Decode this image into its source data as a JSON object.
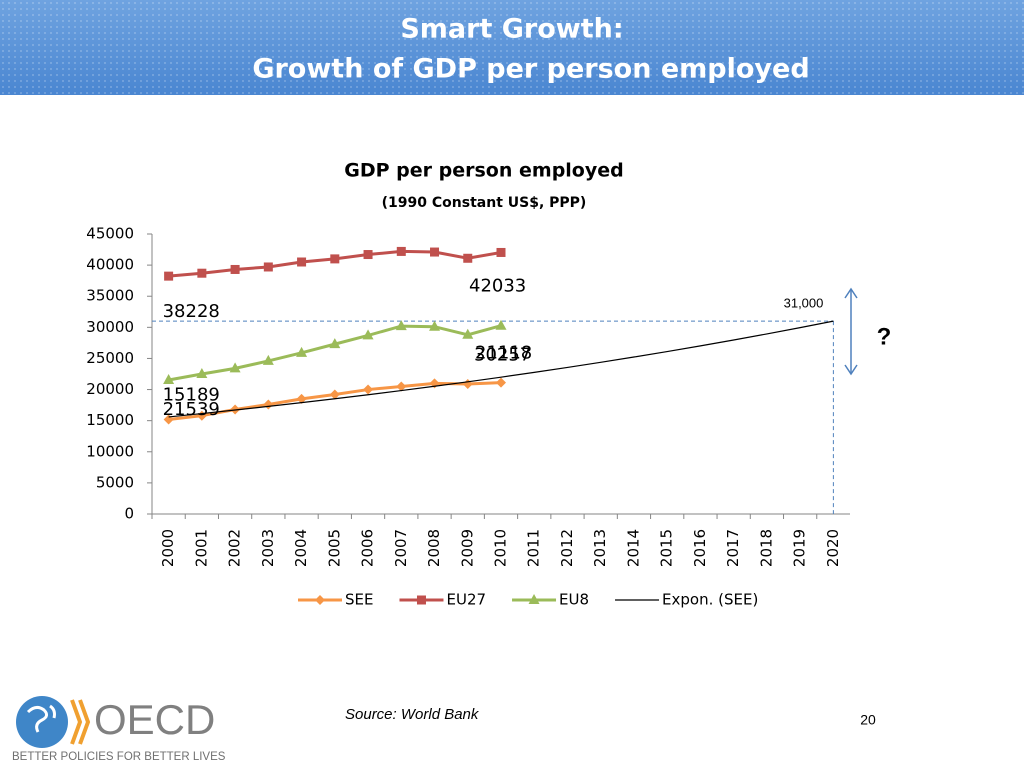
{
  "slide": {
    "title_lines": [
      "Smart Growth:",
      "Growth of GDP per person employed"
    ],
    "source": "Source: World Bank",
    "page": "20"
  },
  "logo": {
    "name": "OECD",
    "tagline": "BETTER POLICIES FOR BETTER LIVES"
  },
  "chart_data": {
    "type": "line",
    "title": "GDP per person employed",
    "subtitle": "(1990 Constant US$, PPP)",
    "categories": [
      "2000",
      "2001",
      "2002",
      "2003",
      "2004",
      "2005",
      "2006",
      "2007",
      "2008",
      "2009",
      "2010",
      "2011",
      "2012",
      "2013",
      "2014",
      "2015",
      "2016",
      "2017",
      "2018",
      "2019",
      "2020"
    ],
    "series": [
      {
        "name": "SEE",
        "color": "#f79646",
        "marker": "diamond",
        "values": [
          15189,
          15800,
          16800,
          17600,
          18500,
          19200,
          20000,
          20500,
          21000,
          20900,
          21118,
          null,
          null,
          null,
          null,
          null,
          null,
          null,
          null,
          null,
          null
        ]
      },
      {
        "name": "EU27",
        "color": "#c0504d",
        "marker": "square",
        "values": [
          38228,
          38700,
          39300,
          39700,
          40500,
          41000,
          41700,
          42200,
          42100,
          41100,
          42033,
          null,
          null,
          null,
          null,
          null,
          null,
          null,
          null,
          null,
          null
        ]
      },
      {
        "name": "EU8",
        "color": "#9bbb59",
        "marker": "triangle",
        "values": [
          21539,
          22500,
          23400,
          24600,
          25900,
          27300,
          28700,
          30200,
          30100,
          28800,
          30257,
          null,
          null,
          null,
          null,
          null,
          null,
          null,
          null,
          null,
          null
        ]
      },
      {
        "name": "Expon. (SEE)",
        "color": "#000000",
        "marker": "none",
        "values": [
          15600,
          16145,
          16709,
          17293,
          17897,
          18522,
          19169,
          19839,
          20532,
          21249,
          21991,
          22759,
          23554,
          24376,
          25228,
          26109,
          27021,
          27964,
          28940,
          29951,
          31000
        ]
      }
    ],
    "ylim": [
      0,
      45000
    ],
    "yticks": [
      0,
      5000,
      10000,
      15000,
      20000,
      25000,
      30000,
      35000,
      40000,
      45000
    ],
    "grid": false,
    "legend": "bottom",
    "reference_line": {
      "value": 31000,
      "label": "31,000"
    },
    "annotation": "?"
  }
}
